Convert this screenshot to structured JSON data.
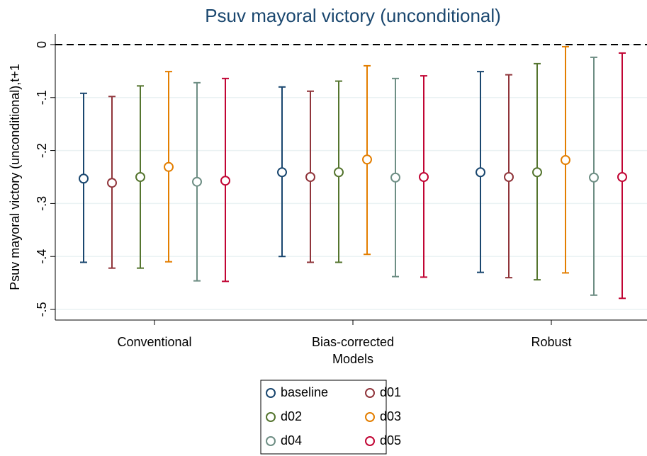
{
  "chart_data": {
    "type": "errorbar",
    "title": "Psuv mayoral victory (unconditional)",
    "y_label": "Psuv mayoral victory (unconditional),t+1",
    "x_label": "Models",
    "categories": [
      "Conventional",
      "Bias-corrected",
      "Robust"
    ],
    "ylim": [
      -0.52,
      0.02
    ],
    "yticks": [
      0,
      {
        "value": -0.1,
        "label": "-.1"
      },
      {
        "value": -0.2,
        "label": "-.2"
      },
      {
        "value": -0.3,
        "label": "-.3"
      },
      {
        "value": -0.4,
        "label": "-.4"
      },
      {
        "value": -0.5,
        "label": "-.5"
      }
    ],
    "grid": true,
    "reference_line": 0,
    "legend_position": "bottom",
    "series": [
      {
        "name": "baseline",
        "color": "#1a476f",
        "values": [
          -0.253,
          -0.241,
          -0.241
        ],
        "lower": [
          -0.411,
          -0.4,
          -0.43
        ],
        "upper": [
          -0.092,
          -0.08,
          -0.051
        ]
      },
      {
        "name": "d01",
        "color": "#90353b",
        "values": [
          -0.261,
          -0.25,
          -0.25
        ],
        "lower": [
          -0.422,
          -0.411,
          -0.44
        ],
        "upper": [
          -0.098,
          -0.088,
          -0.057
        ]
      },
      {
        "name": "d02",
        "color": "#55752f",
        "values": [
          -0.25,
          -0.241,
          -0.241
        ],
        "lower": [
          -0.422,
          -0.411,
          -0.444
        ],
        "upper": [
          -0.078,
          -0.069,
          -0.036
        ]
      },
      {
        "name": "d03",
        "color": "#e37e00",
        "values": [
          -0.231,
          -0.217,
          -0.218
        ],
        "lower": [
          -0.41,
          -0.396,
          -0.431
        ],
        "upper": [
          -0.051,
          -0.04,
          -0.004
        ]
      },
      {
        "name": "d04",
        "color": "#6e8e84",
        "values": [
          -0.259,
          -0.251,
          -0.251
        ],
        "lower": [
          -0.446,
          -0.438,
          -0.473
        ],
        "upper": [
          -0.072,
          -0.064,
          -0.024
        ]
      },
      {
        "name": "d05",
        "color": "#c10534",
        "values": [
          -0.257,
          -0.25,
          -0.25
        ],
        "lower": [
          -0.447,
          -0.439,
          -0.479
        ],
        "upper": [
          -0.064,
          -0.059,
          -0.016
        ]
      }
    ]
  }
}
